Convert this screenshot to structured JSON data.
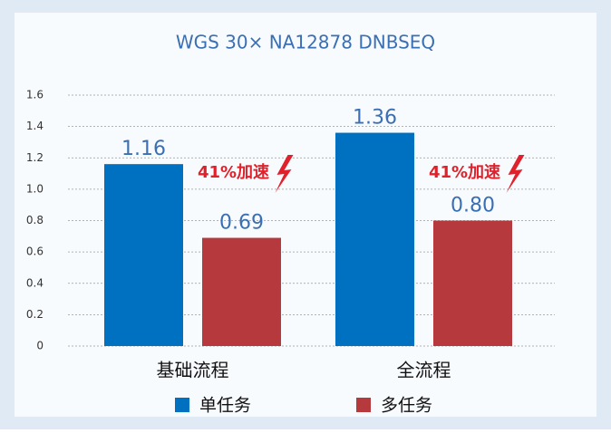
{
  "chart_data": {
    "type": "bar",
    "title": "WGS 30× NA12878 DNBSEQ",
    "categories": [
      "基础流程",
      "全流程"
    ],
    "series": [
      {
        "name": "单任务",
        "color": "#0070c0",
        "values": [
          1.16,
          1.36
        ],
        "value_labels": [
          "1.16",
          "1.36"
        ]
      },
      {
        "name": "多任务",
        "color": "#b5393d",
        "values": [
          0.69,
          0.8
        ],
        "value_labels": [
          "0.69",
          "0.80"
        ]
      }
    ],
    "annotations": [
      "41%加速",
      "41%加速"
    ],
    "ylim": [
      0,
      1.6
    ],
    "yticks": [
      0,
      0.2,
      0.4,
      0.6,
      0.8,
      {
        "value": 1.0,
        "label": "1.0"
      },
      1.2,
      1.4,
      1.6
    ],
    "grid": true,
    "legend": "bottom"
  }
}
